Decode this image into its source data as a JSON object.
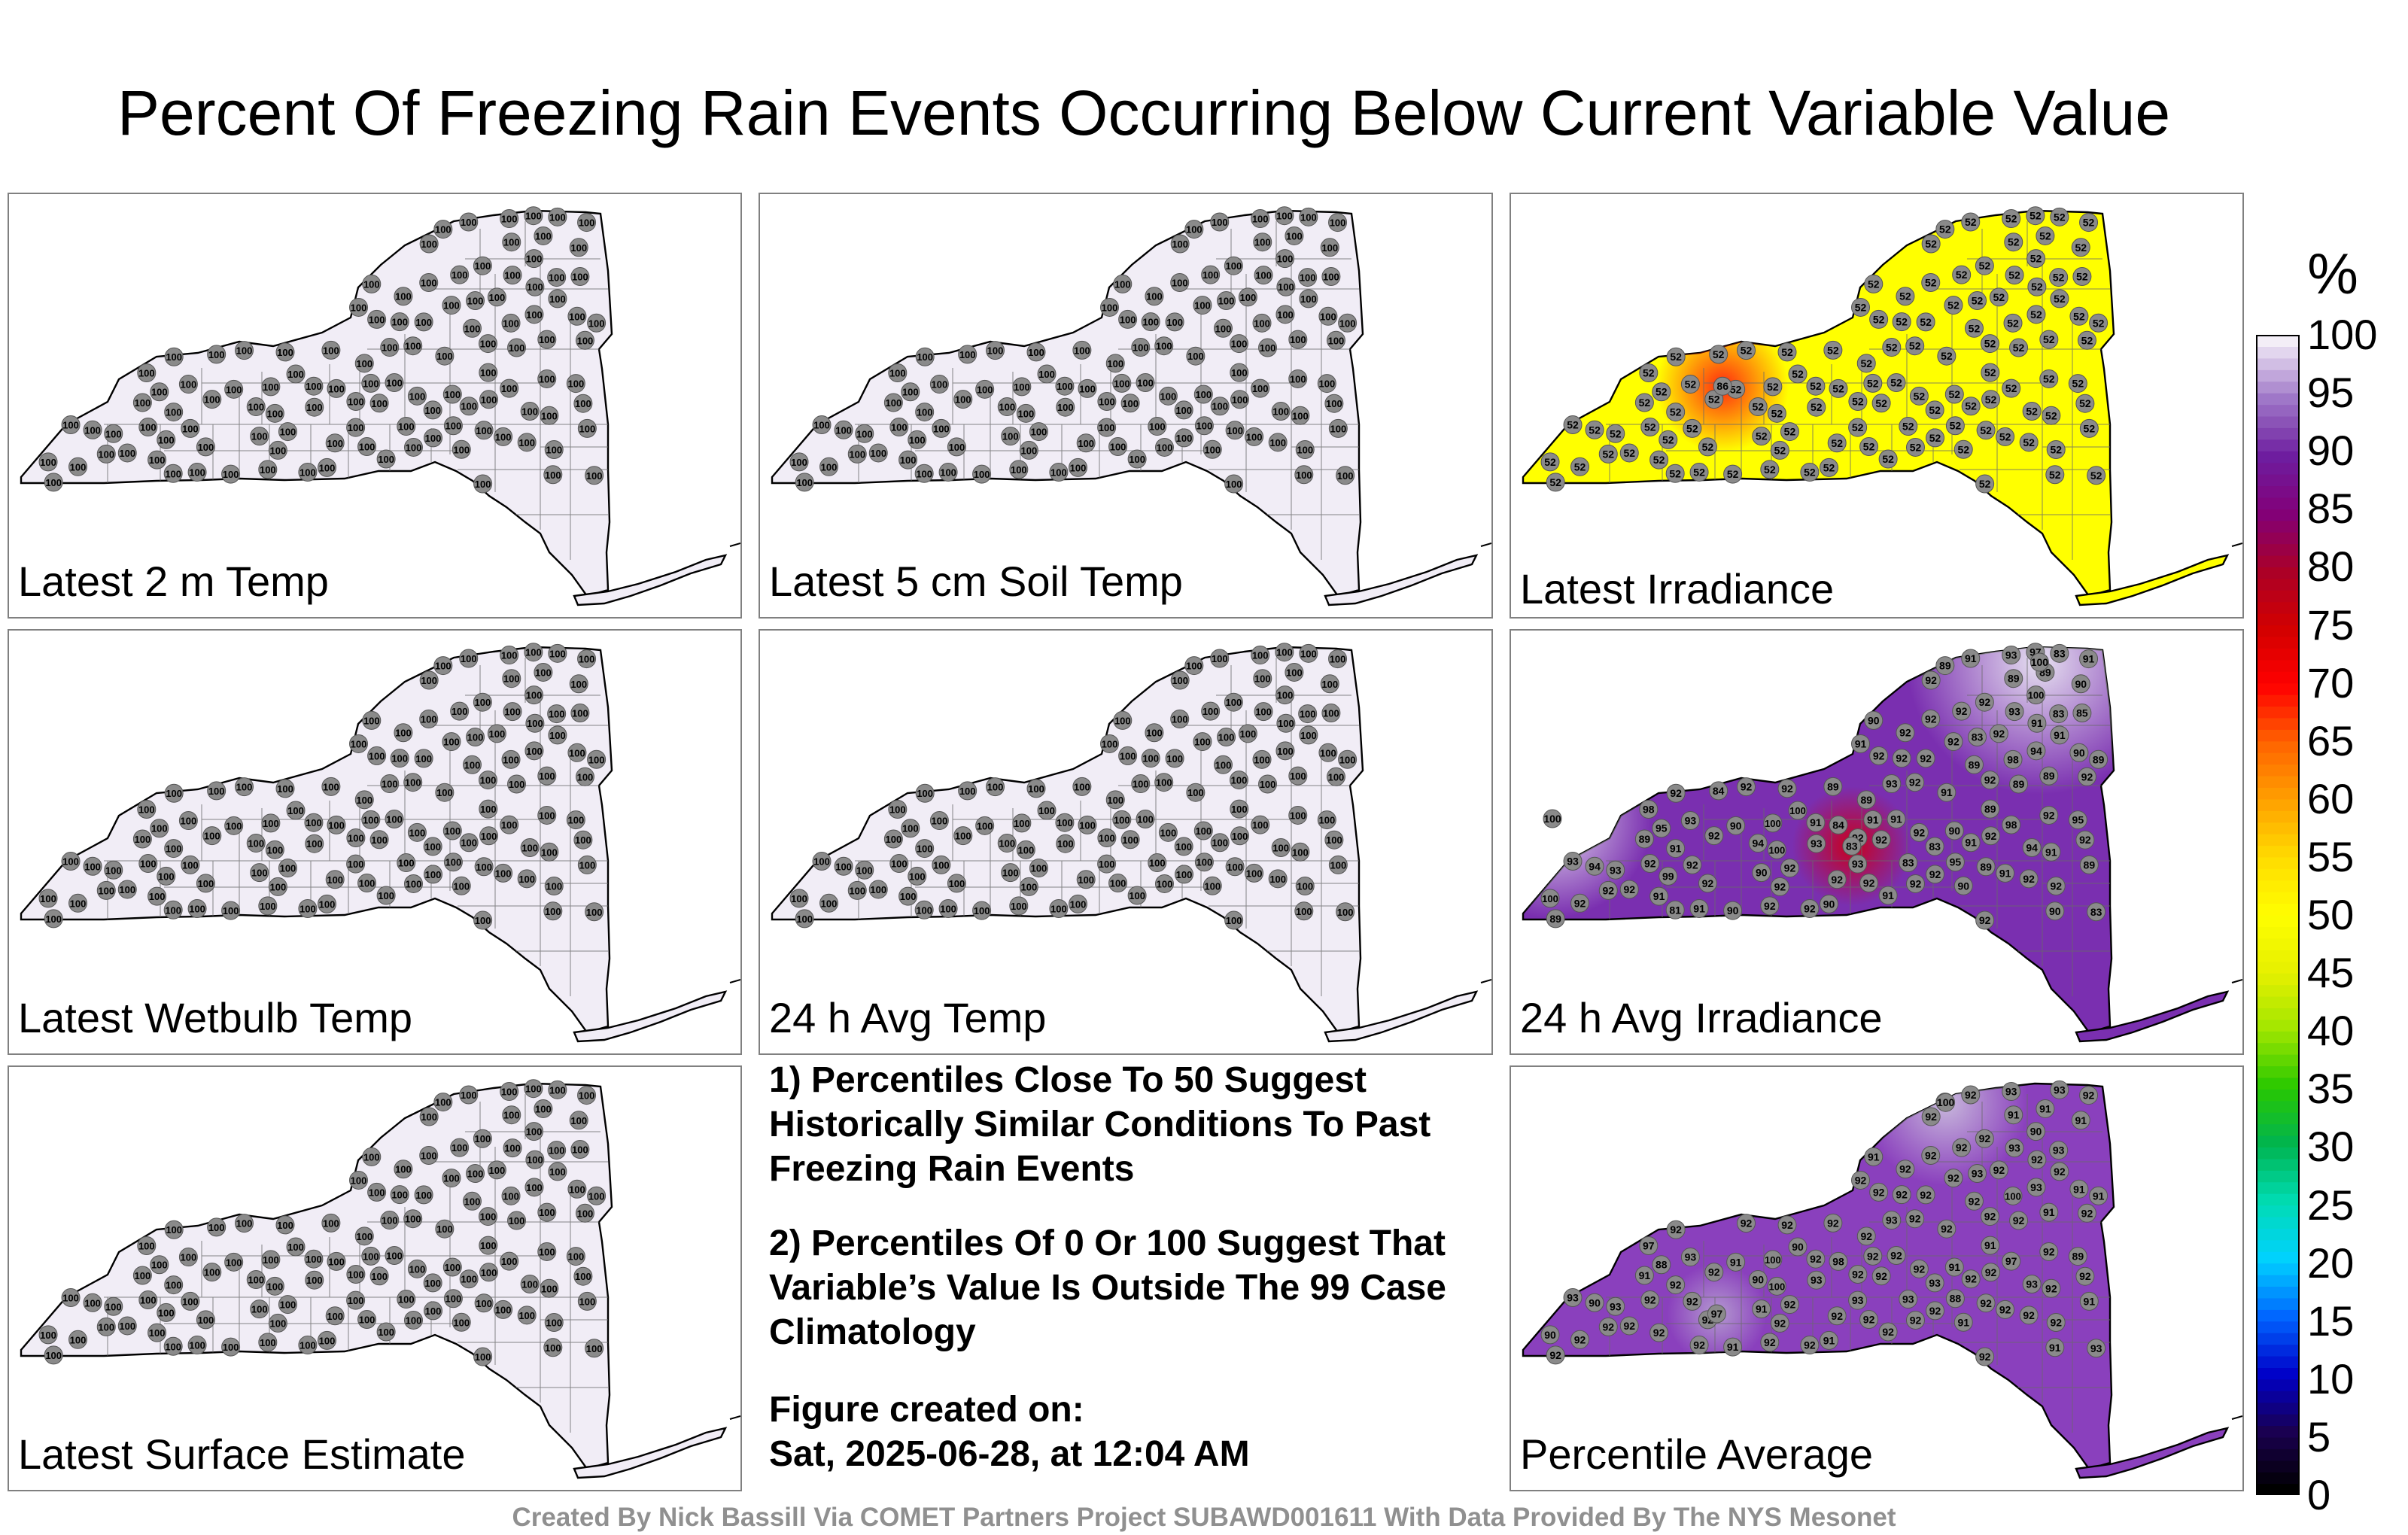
{
  "title": "Percent Of Freezing Rain Events Occurring Below Current Variable Value",
  "colorbar": {
    "unit": "%",
    "ticks": [
      "100",
      "95",
      "90",
      "85",
      "80",
      "75",
      "70",
      "65",
      "60",
      "55",
      "50",
      "45",
      "40",
      "35",
      "30",
      "25",
      "20",
      "15",
      "10",
      "5",
      "0"
    ],
    "stops": [
      "#000000",
      "#1a0050",
      "#0000c8",
      "#0064ff",
      "#00d2ff",
      "#00dcb4",
      "#00b450",
      "#28c800",
      "#a0e600",
      "#e6f000",
      "#ffff00",
      "#ffdc00",
      "#ffa000",
      "#ff6400",
      "#ff0000",
      "#d20000",
      "#aa0028",
      "#820078",
      "#6e1ea0",
      "#a078c8",
      "#f3eef7"
    ]
  },
  "panels": [
    {
      "id": "latest-2m-temp",
      "label": "Latest 2 m Temp",
      "fill": "#f1edf6",
      "stations": [
        {
          "v": "100",
          "n": 115
        }
      ],
      "extra": []
    },
    {
      "id": "latest-5cm-soil-temp",
      "label": "Latest 5 cm Soil Temp",
      "fill": "#f1edf6",
      "stations": [
        {
          "v": "100",
          "n": 115
        }
      ],
      "extra": []
    },
    {
      "id": "latest-irradiance",
      "label": "Latest Irradiance",
      "fill": "#ffff00",
      "stations": [
        {
          "v": "52",
          "n": 115
        }
      ],
      "extra": [
        {
          "v": "86",
          "color": "#ff2a10",
          "u": 0.34,
          "w": 0.46,
          "r": 40
        }
      ]
    },
    {
      "id": "latest-wetbulb-temp",
      "label": "Latest Wetbulb Temp",
      "fill": "#f1edf6",
      "stations": [
        {
          "v": "100",
          "n": 115
        }
      ],
      "extra": []
    },
    {
      "id": "24h-avg-temp",
      "label": "24 h Avg Temp",
      "fill": "#f1edf6",
      "stations": [
        {
          "v": "100",
          "n": 115
        }
      ],
      "extra": []
    },
    {
      "id": "24h-avg-irradiance",
      "label": "24 h Avg Irradiance",
      "fill": "#7a2fb0",
      "stations": [
        {
          "v": "92",
          "n": 40
        },
        {
          "v": "91",
          "n": 16
        },
        {
          "v": "89",
          "n": 14
        },
        {
          "v": "90",
          "n": 10
        },
        {
          "v": "93",
          "n": 8
        },
        {
          "v": "83",
          "n": 6
        },
        {
          "v": "94",
          "n": 4
        },
        {
          "v": "100",
          "n": 5
        },
        {
          "v": "98",
          "n": 3
        },
        {
          "v": "95",
          "n": 3
        },
        {
          "v": "84",
          "n": 2
        },
        {
          "v": "99",
          "n": 1
        },
        {
          "v": "85",
          "n": 1
        },
        {
          "v": "81",
          "n": 1
        },
        {
          "v": "97",
          "n": 1
        }
      ],
      "extra": [
        {
          "v": "83",
          "color": "#c8001e",
          "u": 0.56,
          "w": 0.52,
          "r": 36
        },
        {
          "v": "100",
          "color": "#e6e0f0",
          "u": 0.05,
          "w": 0.45,
          "r": 60
        },
        {
          "v": "100",
          "color": "#e6e0f0",
          "u": 0.88,
          "w": 0.05,
          "r": 80
        }
      ]
    },
    {
      "id": "latest-surface-estimate",
      "label": "Latest Surface Estimate",
      "fill": "#f1edf6",
      "stations": [
        {
          "v": "100",
          "n": 115
        }
      ],
      "extra": []
    },
    {
      "id": "percentile-average",
      "label": "Percentile Average",
      "fill": "#8a40bd",
      "stations": [
        {
          "v": "92",
          "n": 62
        },
        {
          "v": "91",
          "n": 18
        },
        {
          "v": "93",
          "n": 16
        },
        {
          "v": "90",
          "n": 5
        },
        {
          "v": "100",
          "n": 3
        },
        {
          "v": "97",
          "n": 2
        },
        {
          "v": "88",
          "n": 2
        },
        {
          "v": "89",
          "n": 1
        },
        {
          "v": "98",
          "n": 1
        }
      ],
      "extra": [
        {
          "v": "100",
          "color": "#c8b8dc",
          "u": 0.72,
          "w": 0.06,
          "r": 50
        },
        {
          "v": "97",
          "color": "#b49ad0",
          "u": 0.33,
          "w": 0.6,
          "r": 30
        }
      ]
    }
  ],
  "notes": [
    "1) Percentiles Close To 50 Suggest Historically Similar Conditions To Past Freezing Rain Events",
    "2) Percentiles Of 0 Or 100 Suggest That Variable’s Value Is Outside The 99 Case Climatology",
    "Figure created on:"
  ],
  "figure_date": "Sat, 2025-06-28, at 12:04 AM",
  "credit": "Created By Nick Bassill Via COMET Partners Project SUBAWD001611 With Data Provided By The NYS Mesonet"
}
